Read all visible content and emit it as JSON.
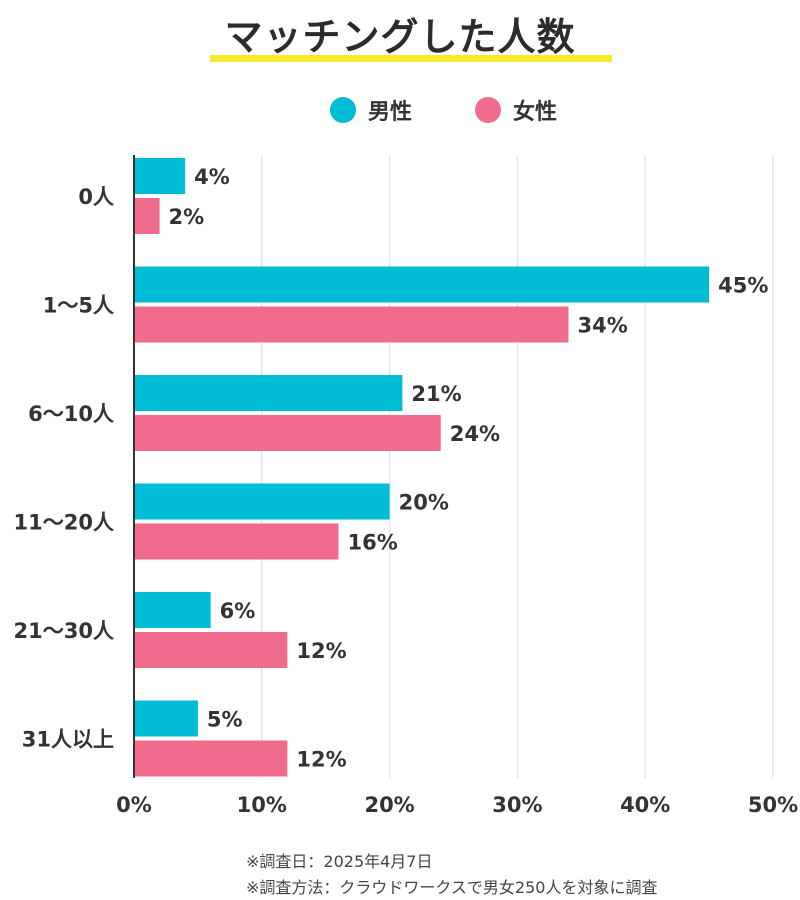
{
  "colors": {
    "male": "#00bcd4",
    "female": "#f06b8c",
    "underline": "#f5ea2a",
    "grid": "#e6e6e6",
    "axis": "#333333"
  },
  "chart_data": {
    "type": "bar",
    "orientation": "horizontal",
    "title": "マッチングした人数",
    "categories": [
      "0人",
      "1〜5人",
      "6〜10人",
      "11〜20人",
      "21〜30人",
      "31人以上"
    ],
    "series": [
      {
        "name": "男性",
        "values": [
          4,
          45,
          21,
          20,
          6,
          5
        ]
      },
      {
        "name": "女性",
        "values": [
          2,
          34,
          24,
          16,
          12,
          12
        ]
      }
    ],
    "xlim": [
      0,
      50
    ],
    "xticks": [
      0,
      10,
      20,
      30,
      40,
      50
    ],
    "xtick_labels": [
      "0%",
      "10%",
      "20%",
      "30%",
      "40%",
      "50%"
    ],
    "value_suffix": "%",
    "legend": "top-center",
    "grid": true
  },
  "notes": {
    "date": "※調査日：2025年4月7日",
    "method": "※調査方法：クラウドワークスで男女250人を対象に調査"
  }
}
